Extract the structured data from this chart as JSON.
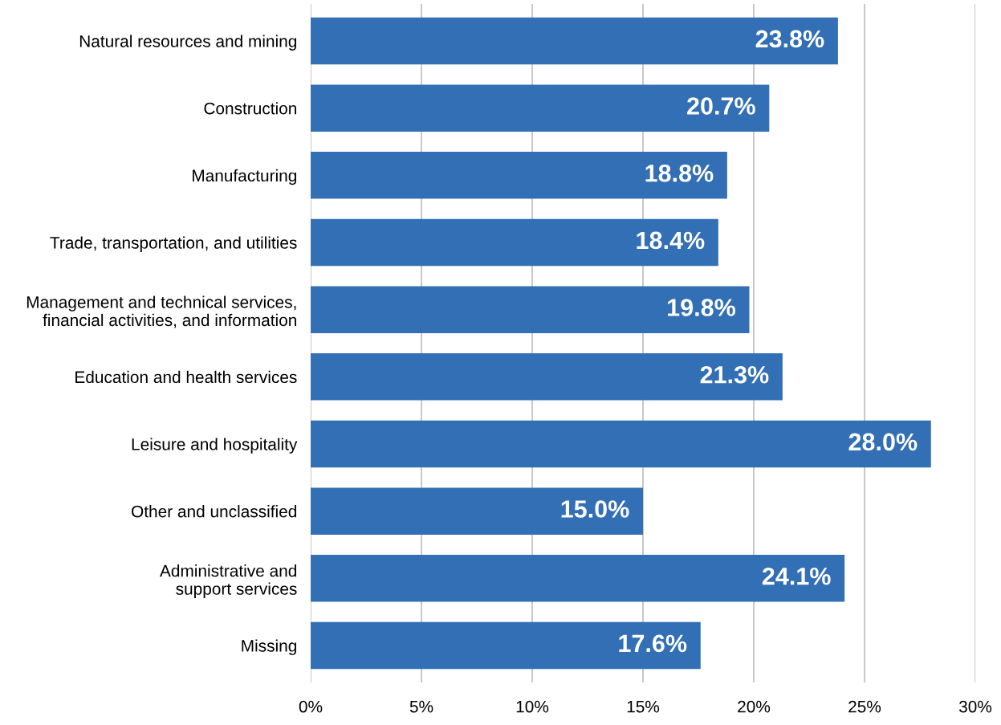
{
  "chart_data": {
    "type": "bar",
    "orientation": "horizontal",
    "categories": [
      "Natural resources and mining",
      "Construction",
      "Manufacturing",
      "Trade, transportation, and utilities",
      "Management and technical services,\nfinancial activities, and information",
      "Education and health services",
      "Leisure and hospitality",
      "Other and unclassified",
      "Administrative and\nsupport services",
      "Missing"
    ],
    "values": [
      23.8,
      20.7,
      18.8,
      18.4,
      19.8,
      21.3,
      28.0,
      15.0,
      24.1,
      17.6
    ],
    "value_labels": [
      "23.8%",
      "20.7%",
      "18.8%",
      "18.4%",
      "19.8%",
      "21.3%",
      "28.0%",
      "15.0%",
      "24.1%",
      "17.6%"
    ],
    "color": "#336fb5",
    "xlim": [
      0,
      30
    ],
    "xticks": [
      {
        "value": 0,
        "label": "0%"
      },
      {
        "value": 5,
        "label": "5%"
      },
      {
        "value": 10,
        "label": "10%"
      },
      {
        "value": 15,
        "label": "15%"
      },
      {
        "value": 20,
        "label": "20%"
      },
      {
        "value": 25,
        "label": "25%"
      },
      {
        "value": 30,
        "label": "30%"
      }
    ],
    "grid": "x"
  }
}
